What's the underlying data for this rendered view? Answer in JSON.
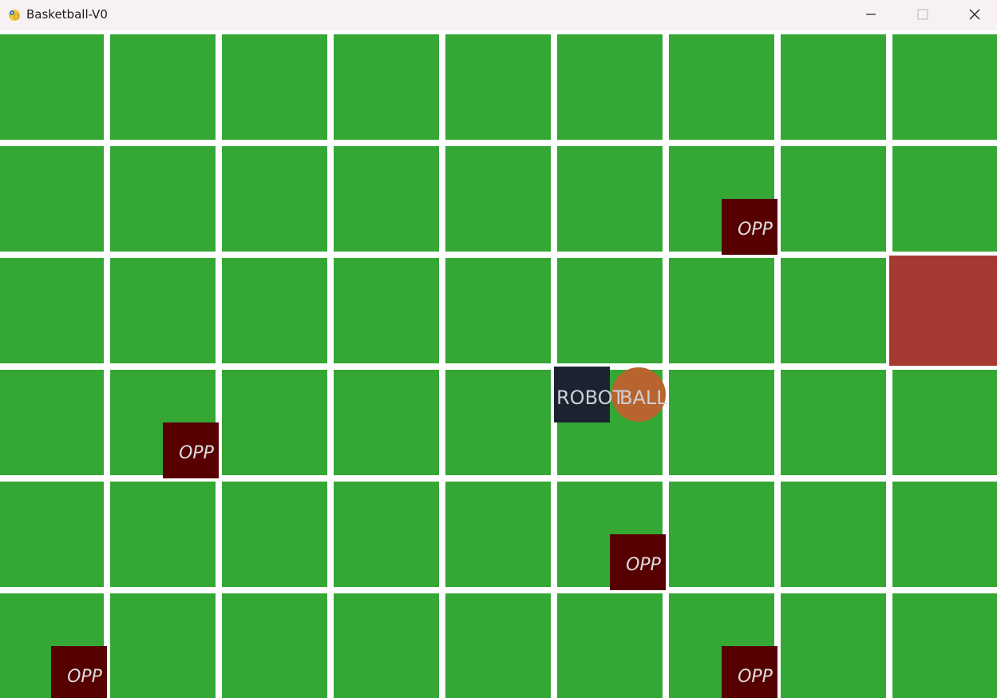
{
  "window": {
    "title": "Basketball-V0",
    "controls": [
      "minimize-icon",
      "maximize-icon",
      "close-icon"
    ]
  },
  "board": {
    "rows": 6,
    "cols": 9,
    "colors": {
      "grid_line": "#ffffff",
      "cell": "#35a735",
      "hoop": "#a63a33",
      "opponent": "#560000",
      "robot": "#1b2331",
      "ball": "#b8642e",
      "label": "#dcdcdc"
    },
    "opponent_label": "OPP",
    "robot_label": "ROBOT",
    "ball_label": "BALL"
  }
}
